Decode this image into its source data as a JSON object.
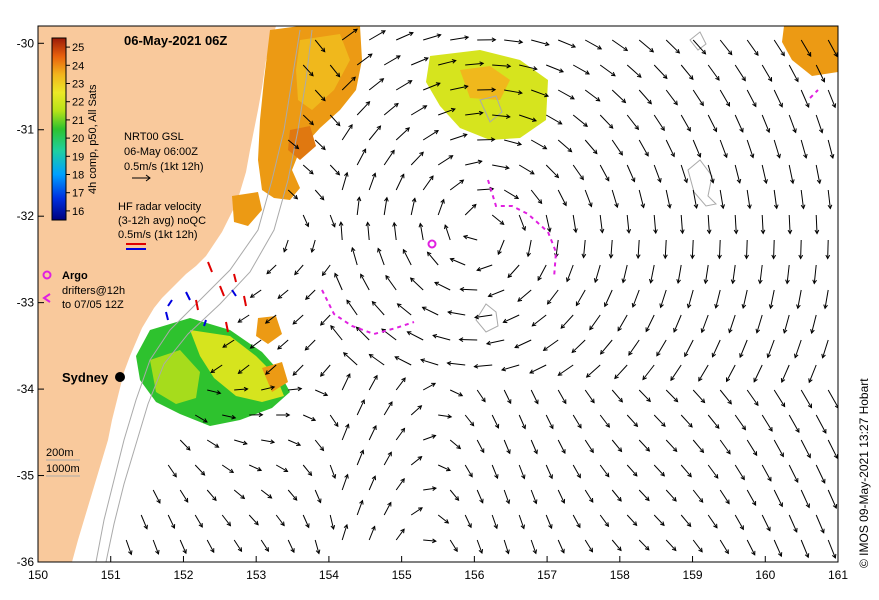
{
  "title": "06-May-2021 06Z",
  "credit": "© IMOS 09-May-2021 13:27 Hobart",
  "axes": {
    "x_ticks": [
      "150",
      "151",
      "152",
      "153",
      "154",
      "155",
      "156",
      "157",
      "158",
      "159",
      "160",
      "161"
    ],
    "y_ticks": [
      "-30",
      "-31",
      "-32",
      "-33",
      "-34",
      "-35",
      "-36"
    ],
    "x_range": [
      150,
      161
    ],
    "y_range": [
      -36,
      -29.8
    ]
  },
  "colorbar": {
    "label": "4h comp, p50, All Sats",
    "ticks": [
      "25",
      "24",
      "23",
      "22",
      "21",
      "20",
      "19",
      "18",
      "17",
      "16"
    ],
    "range": [
      15.5,
      25.5
    ],
    "colors": [
      "#00007f",
      "#0018d8",
      "#0077ff",
      "#00c8ff",
      "#22d07a",
      "#2ec22e",
      "#9ee01a",
      "#e8ea28",
      "#f2c820",
      "#f09a10",
      "#e0560a",
      "#9a1b08"
    ]
  },
  "legend": {
    "gsl_title": "NRT00 GSL",
    "gsl_time": "06-May 06:00Z",
    "gsl_scale": "0.5m/s (1kt 12h)",
    "hf_title": "HF radar velocity",
    "hf_avg": "(3-12h avg) noQC",
    "hf_scale": "0.5m/s (1kt 12h)",
    "argo": "Argo",
    "drifters": "drifters@12h",
    "drifters_to": "to 07/05 12Z",
    "depth_200": "200m",
    "depth_1000": "1000m"
  },
  "places": {
    "sydney": "Sydney"
  },
  "colors": {
    "land": "#f9c99c",
    "sst_green": "#2ec22e",
    "sst_yellow": "#d6e41e",
    "sst_orange": "#ec9a14",
    "argo": "#e020e0",
    "arrow": "#000000"
  }
}
